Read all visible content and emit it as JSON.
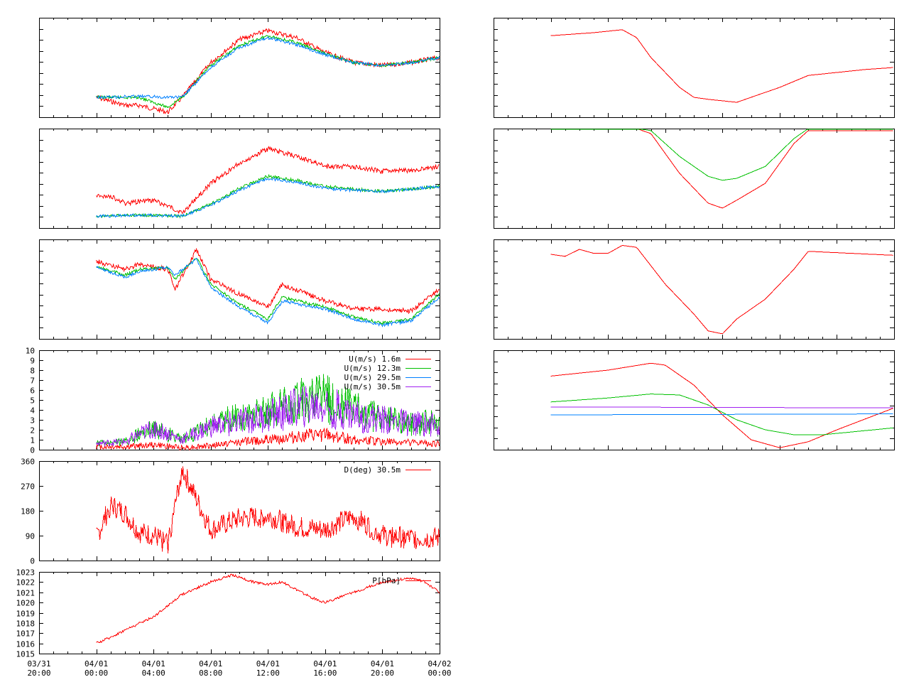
{
  "x_axis": {
    "tick_labels": [
      {
        "date": "03/31",
        "time": "20:00"
      },
      {
        "date": "04/01",
        "time": "00:00"
      },
      {
        "date": "04/01",
        "time": "04:00"
      },
      {
        "date": "04/01",
        "time": "08:00"
      },
      {
        "date": "04/01",
        "time": "12:00"
      },
      {
        "date": "04/01",
        "time": "16:00"
      },
      {
        "date": "04/01",
        "time": "20:00"
      },
      {
        "date": "04/02",
        "time": "00:00"
      }
    ]
  },
  "colors": {
    "red": "#ff0000",
    "green": "#00c000",
    "blue": "#0080ff",
    "purple": "#a020f0"
  },
  "chart_data": [
    {
      "type": "line",
      "x_range": [
        "03/31 20:00",
        "04/02 00:00"
      ],
      "y_tick_labels": [],
      "series": [
        {
          "color": "red",
          "x": [
            "04/01 00:00",
            "04/01 02:00",
            "04/01 03:00",
            "04/01 05:00",
            "04/01 06:00",
            "04/01 08:00",
            "04/01 10:00",
            "04/01 12:00",
            "04/01 14:00",
            "04/01 16:00",
            "04/01 18:00",
            "04/01 20:00",
            "04/01 22:00",
            "04/02 00:00"
          ],
          "y": [
            0.8,
            0.88,
            0.88,
            0.95,
            0.8,
            0.45,
            0.22,
            0.13,
            0.2,
            0.35,
            0.45,
            0.48,
            0.45,
            0.4
          ]
        },
        {
          "color": "green",
          "x": [
            "04/01 00:00",
            "04/01 03:00",
            "04/01 05:00",
            "04/01 06:00",
            "04/01 08:00",
            "04/01 10:00",
            "04/01 12:00",
            "04/01 14:00",
            "04/01 16:00",
            "04/01 18:00",
            "04/01 20:00",
            "04/01 22:00",
            "04/02 00:00"
          ],
          "y": [
            0.8,
            0.8,
            0.9,
            0.8,
            0.48,
            0.28,
            0.18,
            0.25,
            0.36,
            0.45,
            0.48,
            0.45,
            0.4
          ]
        },
        {
          "color": "blue",
          "x": [
            "04/01 00:00",
            "04/01 03:00",
            "04/01 06:00",
            "04/01 08:00",
            "04/01 10:00",
            "04/01 12:00",
            "04/01 14:00",
            "04/01 16:00",
            "04/01 18:00",
            "04/01 20:00",
            "04/01 22:00",
            "04/02 00:00"
          ],
          "y": [
            0.8,
            0.79,
            0.8,
            0.5,
            0.3,
            0.2,
            0.27,
            0.37,
            0.45,
            0.48,
            0.45,
            0.4
          ]
        }
      ]
    },
    {
      "type": "line",
      "x_range": [
        "03/31 20:00",
        "04/02 00:00"
      ],
      "y_tick_labels": [],
      "series": [
        {
          "color": "red",
          "x": [
            "04/01 00:00",
            "04/01 01:00",
            "04/01 02:00",
            "04/01 04:00",
            "04/01 05:00",
            "04/01 06:00",
            "04/01 08:00",
            "04/01 10:00",
            "04/01 12:00",
            "04/01 14:00",
            "04/01 16:00",
            "04/01 18:00",
            "04/01 20:00",
            "04/01 22:00",
            "04/02 00:00"
          ],
          "y": [
            0.68,
            0.68,
            0.75,
            0.72,
            0.78,
            0.85,
            0.55,
            0.35,
            0.2,
            0.28,
            0.38,
            0.38,
            0.43,
            0.42,
            0.38
          ]
        },
        {
          "color": "green",
          "x": [
            "04/01 00:00",
            "04/01 03:00",
            "04/01 06:00",
            "04/01 08:00",
            "04/01 10:00",
            "04/01 12:00",
            "04/01 14:00",
            "04/01 16:00",
            "04/01 18:00",
            "04/01 20:00",
            "04/01 22:00",
            "04/02 00:00"
          ],
          "y": [
            0.88,
            0.87,
            0.88,
            0.76,
            0.6,
            0.48,
            0.52,
            0.58,
            0.61,
            0.63,
            0.61,
            0.58
          ]
        },
        {
          "color": "blue",
          "x": [
            "04/01 00:00",
            "04/01 03:00",
            "04/01 06:00",
            "04/01 08:00",
            "04/01 10:00",
            "04/01 12:00",
            "04/01 14:00",
            "04/01 16:00",
            "04/01 18:00",
            "04/01 20:00",
            "04/01 22:00",
            "04/02 00:00"
          ],
          "y": [
            0.88,
            0.87,
            0.88,
            0.77,
            0.62,
            0.5,
            0.54,
            0.6,
            0.62,
            0.63,
            0.61,
            0.58
          ]
        }
      ]
    },
    {
      "type": "line",
      "x_range": [
        "03/31 20:00",
        "04/02 00:00"
      ],
      "y_tick_labels": [],
      "series": [
        {
          "color": "red",
          "x": [
            "04/01 00:00",
            "04/01 02:00",
            "04/01 03:00",
            "04/01 05:00",
            "04/01 05:30",
            "04/01 07:00",
            "04/01 08:00",
            "04/01 10:00",
            "04/01 12:00",
            "04/01 13:00",
            "04/01 16:00",
            "04/01 18:00",
            "04/01 20:00",
            "04/01 22:00",
            "04/02 00:00"
          ],
          "y": [
            0.22,
            0.3,
            0.25,
            0.3,
            0.5,
            0.1,
            0.4,
            0.55,
            0.68,
            0.45,
            0.62,
            0.7,
            0.7,
            0.72,
            0.5
          ]
        },
        {
          "color": "green",
          "x": [
            "04/01 00:00",
            "04/01 02:00",
            "04/01 03:00",
            "04/01 05:00",
            "04/01 05:30",
            "04/01 07:00",
            "04/01 08:00",
            "04/01 10:00",
            "04/01 12:00",
            "04/01 13:00",
            "04/01 16:00",
            "04/01 18:00",
            "04/01 20:00",
            "04/01 22:00",
            "04/02 00:00"
          ],
          "y": [
            0.27,
            0.36,
            0.3,
            0.28,
            0.4,
            0.18,
            0.45,
            0.65,
            0.8,
            0.58,
            0.68,
            0.78,
            0.84,
            0.8,
            0.55
          ]
        },
        {
          "color": "blue",
          "x": [
            "04/01 00:00",
            "04/01 02:00",
            "04/01 03:00",
            "04/01 05:00",
            "04/01 05:30",
            "04/01 07:00",
            "04/01 08:00",
            "04/01 10:00",
            "04/01 12:00",
            "04/01 13:00",
            "04/01 16:00",
            "04/01 18:00",
            "04/01 20:00",
            "04/01 22:00",
            "04/02 00:00"
          ],
          "y": [
            0.28,
            0.38,
            0.32,
            0.28,
            0.36,
            0.2,
            0.48,
            0.68,
            0.84,
            0.62,
            0.7,
            0.8,
            0.86,
            0.82,
            0.58
          ]
        }
      ]
    },
    {
      "type": "line",
      "x_range": [
        "03/31 20:00",
        "04/02 00:00"
      ],
      "y_range": [
        0,
        10
      ],
      "y_tick_labels": [
        "0",
        "1",
        "2",
        "3",
        "4",
        "5",
        "6",
        "7",
        "8",
        "9",
        "10"
      ],
      "legend": [
        "U(m/s)  1.6m",
        "U(m/s) 12.3m",
        "U(m/s) 29.5m",
        "U(m/s) 30.5m"
      ],
      "legend_position": "top-right",
      "series": [
        {
          "name": "U(m/s)  1.6m",
          "color": "red",
          "x": [
            "04/01 00:00",
            "04/01 02:00",
            "04/01 04:00",
            "04/01 06:00",
            "04/01 08:00",
            "04/01 10:00",
            "04/01 12:00",
            "04/01 14:00",
            "04/01 16:00",
            "04/01 18:00",
            "04/01 20:00",
            "04/01 22:00",
            "04/02 00:00"
          ],
          "y": [
            0.3,
            0.3,
            0.5,
            0.2,
            0.4,
            0.8,
            1.0,
            1.3,
            1.5,
            1.0,
            0.8,
            0.7,
            0.6
          ]
        },
        {
          "name": "U(m/s) 12.3m",
          "color": "green",
          "x": [
            "04/01 00:00",
            "04/01 02:00",
            "04/01 04:00",
            "04/01 06:00",
            "04/01 08:00",
            "04/01 10:00",
            "04/01 12:00",
            "04/01 14:00",
            "04/01 16:00",
            "04/01 18:00",
            "04/01 20:00",
            "04/01 22:00",
            "04/02 00:00"
          ],
          "y": [
            0.6,
            0.8,
            2.2,
            1.0,
            2.5,
            3.2,
            3.8,
            4.8,
            5.2,
            4.0,
            3.2,
            2.8,
            2.6
          ]
        },
        {
          "name": "U(m/s) 29.5m",
          "color": "blue",
          "x": [
            "04/01 00:00",
            "04/02 00:00"
          ],
          "y": [
            null,
            null
          ]
        },
        {
          "name": "U(m/s) 30.5m",
          "color": "purple",
          "x": [
            "04/01 00:00",
            "04/01 02:00",
            "04/01 04:00",
            "04/01 06:00",
            "04/01 08:00",
            "04/01 10:00",
            "04/01 12:00",
            "04/01 14:00",
            "04/01 16:00",
            "04/01 18:00",
            "04/01 20:00",
            "04/01 22:00",
            "04/02 00:00"
          ],
          "y": [
            0.6,
            0.8,
            2.2,
            1.0,
            2.3,
            2.8,
            3.3,
            4.2,
            4.5,
            3.5,
            3.0,
            2.6,
            2.5
          ]
        }
      ]
    },
    {
      "type": "line",
      "x_range": [
        "03/31 20:00",
        "04/02 00:00"
      ],
      "y_range": [
        0,
        360
      ],
      "y_tick_labels": [
        "0",
        "90",
        "180",
        "270",
        "360"
      ],
      "legend": [
        "D(deg)  30.5m"
      ],
      "legend_position": "top-right",
      "series": [
        {
          "name": "D(deg)  30.5m",
          "color": "red",
          "x": [
            "04/01 00:00",
            "04/01 01:00",
            "04/01 02:00",
            "04/01 03:00",
            "04/01 04:00",
            "04/01 05:00",
            "04/01 06:00",
            "04/01 08:00",
            "04/01 10:00",
            "04/01 12:00",
            "04/01 14:00",
            "04/01 16:00",
            "04/01 18:00",
            "04/01 20:00",
            "04/01 22:00",
            "04/02 00:00"
          ],
          "y": [
            80,
            200,
            170,
            100,
            90,
            60,
            330,
            110,
            150,
            160,
            120,
            110,
            160,
            90,
            80,
            80
          ]
        }
      ]
    },
    {
      "type": "line",
      "x_range": [
        "03/31 20:00",
        "04/02 00:00"
      ],
      "y_range": [
        1015,
        1023
      ],
      "y_tick_labels": [
        "1015",
        "1016",
        "1017",
        "1018",
        "1019",
        "1020",
        "1021",
        "1022",
        "1023"
      ],
      "legend": [
        "P[hPa]"
      ],
      "legend_position": "top-right",
      "series": [
        {
          "name": "P[hPa]",
          "color": "red",
          "x": [
            "04/01 00:00",
            "04/01 01:00",
            "04/01 02:00",
            "04/01 04:00",
            "04/01 06:00",
            "04/01 08:00",
            "04/01 09:30",
            "04/01 11:00",
            "04/01 12:00",
            "04/01 13:00",
            "04/01 15:00",
            "04/01 16:00",
            "04/01 18:00",
            "04/01 20:00",
            "04/01 22:00",
            "04/01 23:00",
            "04/02 00:00"
          ],
          "y": [
            1016.0,
            1016.6,
            1017.3,
            1018.6,
            1020.8,
            1022.0,
            1022.7,
            1022.0,
            1021.8,
            1022.0,
            1020.5,
            1020.0,
            1021.0,
            1022.0,
            1022.4,
            1022.0,
            1021.0
          ]
        }
      ]
    },
    {
      "type": "line",
      "x_range": [
        "03/31 20:00",
        "04/02 00:00"
      ],
      "y_tick_labels": [],
      "series": [
        {
          "color": "red",
          "x": [
            "04/01 00:00",
            "04/01 03:00",
            "04/01 05:00",
            "04/01 06:00",
            "04/01 07:00",
            "04/01 09:00",
            "04/01 10:00",
            "04/01 11:00",
            "04/01 13:00",
            "04/01 14:00",
            "04/01 15:00",
            "04/01 16:00",
            "04/01 18:00",
            "04/01 20:00",
            "04/01 22:00",
            "04/02 00:00"
          ],
          "y": [
            0.18,
            0.15,
            0.12,
            0.2,
            0.4,
            0.7,
            0.8,
            0.82,
            0.85,
            0.8,
            0.75,
            0.7,
            0.58,
            0.55,
            0.52,
            0.5
          ]
        }
      ]
    },
    {
      "type": "line",
      "x_range": [
        "03/31 20:00",
        "04/02 00:00"
      ],
      "y_tick_labels": [],
      "series": [
        {
          "color": "red",
          "x": [
            "04/01 00:00",
            "04/01 06:00",
            "04/01 07:00",
            "04/01 09:00",
            "04/01 11:00",
            "04/01 12:00",
            "04/01 13:00",
            "04/01 15:00",
            "04/01 17:00",
            "04/01 18:00",
            "04/02 00:00"
          ],
          "y": [
            0.0,
            0.0,
            0.05,
            0.45,
            0.75,
            0.8,
            0.72,
            0.55,
            0.15,
            0.02,
            0.02
          ]
        },
        {
          "color": "green",
          "x": [
            "04/01 00:00",
            "04/01 06:00",
            "04/01 07:00",
            "04/01 09:00",
            "04/01 11:00",
            "04/01 12:00",
            "04/01 13:00",
            "04/01 15:00",
            "04/01 17:00",
            "04/01 18:00",
            "04/02 00:00"
          ],
          "y": [
            0.0,
            0.0,
            0.02,
            0.28,
            0.48,
            0.52,
            0.5,
            0.38,
            0.1,
            0.0,
            0.0
          ]
        }
      ]
    },
    {
      "type": "line",
      "x_range": [
        "03/31 20:00",
        "04/02 00:00"
      ],
      "y_tick_labels": [],
      "series": [
        {
          "color": "red",
          "x": [
            "04/01 00:00",
            "04/01 01:00",
            "04/01 02:00",
            "04/01 03:00",
            "04/01 04:00",
            "04/01 05:00",
            "04/01 06:00",
            "04/01 08:00",
            "04/01 10:00",
            "04/01 11:00",
            "04/01 12:00",
            "04/01 13:00",
            "04/01 15:00",
            "04/01 17:00",
            "04/01 18:00",
            "04/02 00:00"
          ],
          "y": [
            0.15,
            0.17,
            0.1,
            0.14,
            0.14,
            0.06,
            0.08,
            0.45,
            0.75,
            0.92,
            0.95,
            0.8,
            0.6,
            0.3,
            0.12,
            0.16
          ]
        }
      ]
    },
    {
      "type": "line",
      "x_range": [
        "03/31 20:00",
        "04/02 00:00"
      ],
      "y_tick_labels": [],
      "series": [
        {
          "color": "red",
          "x": [
            "04/01 00:00",
            "04/01 04:00",
            "04/01 07:00",
            "04/01 08:00",
            "04/01 10:00",
            "04/01 12:00",
            "04/01 14:00",
            "04/01 16:00",
            "04/01 18:00",
            "04/01 20:00",
            "04/02 00:00"
          ],
          "y": [
            0.26,
            0.2,
            0.13,
            0.15,
            0.35,
            0.65,
            0.9,
            0.98,
            0.92,
            0.8,
            0.58
          ]
        },
        {
          "color": "green",
          "x": [
            "04/01 00:00",
            "04/01 04:00",
            "04/01 07:00",
            "04/01 09:00",
            "04/01 11:00",
            "04/01 13:00",
            "04/01 15:00",
            "04/01 17:00",
            "04/01 19:00",
            "04/02 00:00"
          ],
          "y": [
            0.52,
            0.48,
            0.44,
            0.45,
            0.55,
            0.7,
            0.8,
            0.85,
            0.85,
            0.78
          ]
        },
        {
          "color": "blue",
          "x": [
            "04/01 00:00",
            "04/02 00:00"
          ],
          "y": [
            0.65,
            0.64
          ]
        },
        {
          "color": "purple",
          "x": [
            "04/01 00:00",
            "04/02 00:00"
          ],
          "y": [
            0.57,
            0.58
          ]
        }
      ]
    }
  ]
}
